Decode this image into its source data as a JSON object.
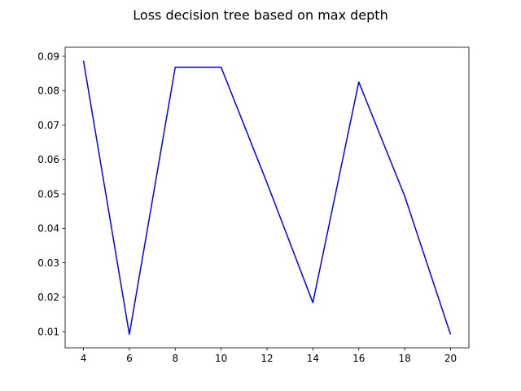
{
  "chart_data": {
    "type": "line",
    "title": "Loss decision tree based on max depth",
    "xlabel": "",
    "ylabel": "",
    "x": [
      4,
      6,
      8,
      10,
      12,
      14,
      16,
      18,
      20
    ],
    "series": [
      {
        "values": [
          0.0887,
          0.0092,
          0.0868,
          0.0868,
          0.0532,
          0.0184,
          0.0825,
          0.0494,
          0.0092
        ],
        "color": "#0000ff"
      }
    ],
    "xlim": [
      3.2,
      20.8
    ],
    "ylim": [
      0.0053,
      0.0926
    ],
    "xticks": [
      "4",
      "6",
      "8",
      "10",
      "12",
      "14",
      "16",
      "18",
      "20"
    ],
    "yticks": [
      "0.01",
      "0.02",
      "0.03",
      "0.04",
      "0.05",
      "0.06",
      "0.07",
      "0.08",
      "0.09"
    ],
    "grid": false,
    "legend": "none"
  }
}
